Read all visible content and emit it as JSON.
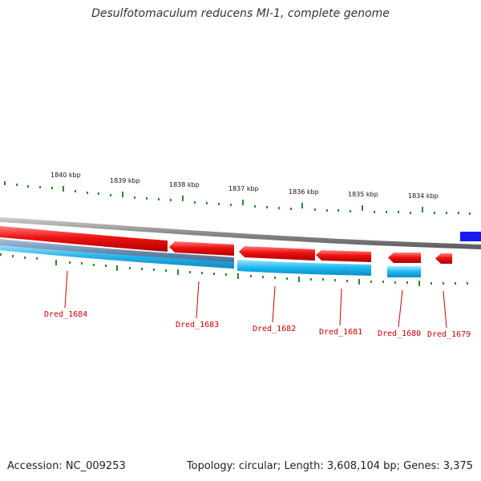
{
  "title": "Desulfotomaculum reducens MI-1, complete genome",
  "footer": {
    "accession": "Accession: NC_009253",
    "summary": "Topology: circular; Length: 3,608,104 bp; Genes: 3,375"
  },
  "ruler": {
    "unit": "kbp",
    "ticks": [
      "1840 kbp",
      "1839 kbp",
      "1838 kbp",
      "1837 kbp",
      "1836 kbp",
      "1835 kbp",
      "1834 kbp"
    ]
  },
  "genes": [
    {
      "locus": "Dred_1684"
    },
    {
      "locus": "Dred_1683"
    },
    {
      "locus": "Dred_1682"
    },
    {
      "locus": "Dred_1681"
    },
    {
      "locus": "Dred_1680"
    },
    {
      "locus": "Dred_1679"
    }
  ],
  "colors": {
    "cds": "#ee0000",
    "gene": "#1cb8f0",
    "gene_dark": "#5f84a8",
    "backbone": "#8a8a8a",
    "tick": "#2a8a2a",
    "label": "#cc0000",
    "marker": "#1a1aee"
  }
}
